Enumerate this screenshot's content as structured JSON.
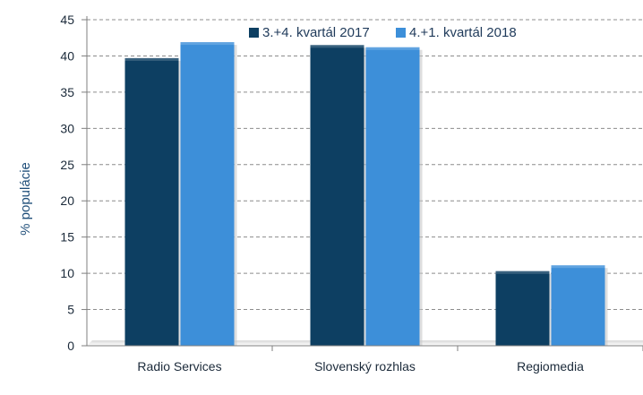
{
  "chart_data": {
    "type": "bar",
    "title": "",
    "xlabel": "",
    "ylabel": "% populácie",
    "ylim": [
      0,
      45
    ],
    "ytick_step": 5,
    "grid": true,
    "legend_position": "top-right",
    "categories": [
      "Radio Services",
      "Slovenský rozhlas",
      "Regiomedia"
    ],
    "series": [
      {
        "name": "3.+4. kvartál 2017",
        "values": [
          39.7,
          41.5,
          10.3
        ],
        "color": "#0d3f62"
      },
      {
        "name": "4.+1. kvartál 2018",
        "values": [
          41.9,
          41.2,
          11.1
        ],
        "color": "#3d8fd9"
      }
    ]
  }
}
